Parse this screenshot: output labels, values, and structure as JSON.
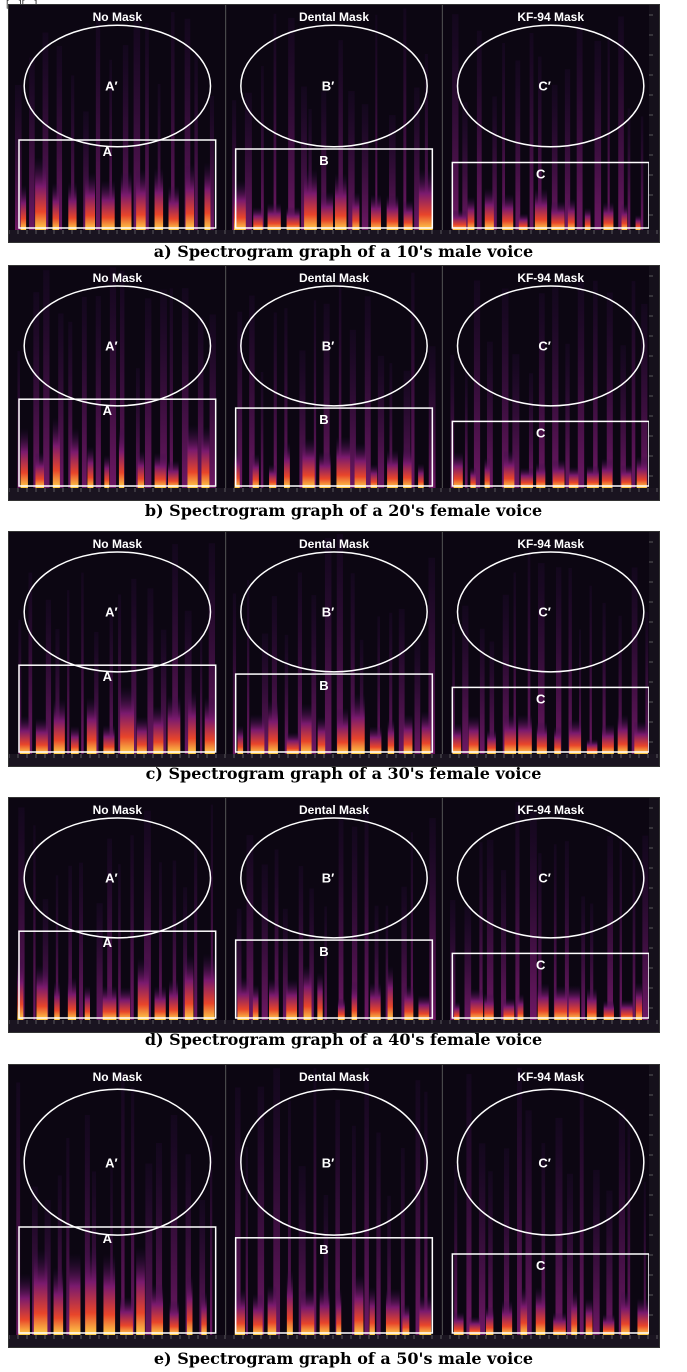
{
  "top_caption": "[...][...]",
  "panels": [
    "No Mask",
    "Dental Mask",
    "KF-94 Mask"
  ],
  "region_labels": {
    "ellipses": [
      "A′",
      "B′",
      "C′"
    ],
    "boxes": [
      "A",
      "B",
      "C"
    ]
  },
  "figures": [
    {
      "caption": "a) Spectrogram graph of a 10's male voice"
    },
    {
      "caption": "b) Spectrogram graph of a 20's female voice"
    },
    {
      "caption": "c) Spectrogram graph of a 30's female voice"
    },
    {
      "caption": "d) Spectrogram graph of a 40's female voice"
    },
    {
      "caption": "e) Spectrogram graph of a 50's male voice"
    }
  ],
  "colors": {
    "background": "#0c0612",
    "low_energy": "#2a0b3d",
    "mid_energy": "#7a1a6e",
    "high_energy": "#e8452a",
    "peak_energy": "#ffd24a",
    "annotation": "#ffffff"
  }
}
